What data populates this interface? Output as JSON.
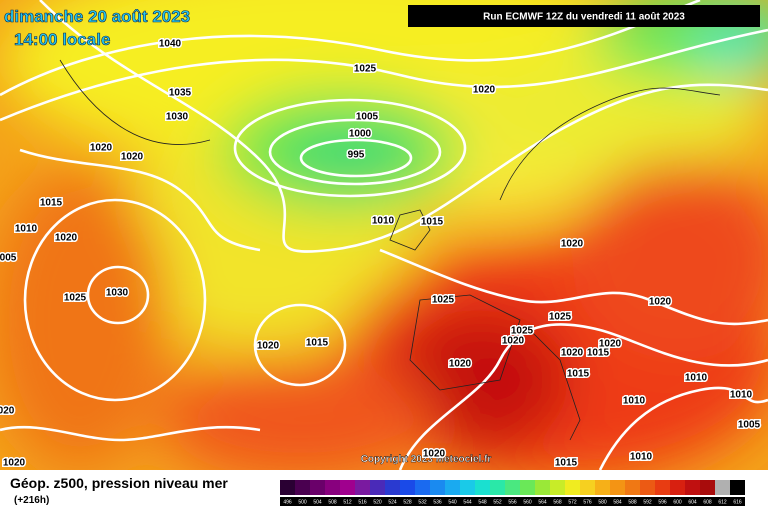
{
  "header": {
    "date": "dimanche 20 août 2023",
    "time": "14:00 locale",
    "run": "Run ECMWF 12Z du vendredi 11 août 2023"
  },
  "copyright": "Copyright 2023 Meteociel.fr",
  "footer": {
    "title": "Géop. z500, pression niveau mer",
    "lead": "(+216h)"
  },
  "colorbar": [
    "496",
    "500",
    "504",
    "508",
    "512",
    "516",
    "520",
    "524",
    "528",
    "532",
    "536",
    "540",
    "544",
    "548",
    "552",
    "556",
    "560",
    "564",
    "568",
    "572",
    "576",
    "580",
    "584",
    "588",
    "592",
    "596",
    "600",
    "604",
    "608",
    "612",
    "616"
  ],
  "isobars": [
    "1040",
    "1025",
    "1020",
    "1035",
    "1030",
    "1005",
    "1000",
    "995",
    "1020",
    "1020",
    "1015",
    "1010",
    "1020",
    "005",
    "1010",
    "1015",
    "1020",
    "1030",
    "1025",
    "1025",
    "1020",
    "1025",
    "1025",
    "1020",
    "1015",
    "1020",
    "1020",
    "1015",
    "1020",
    "1020",
    "1015",
    "1010",
    "1010",
    "1010",
    "020",
    "1005",
    "1020",
    "1015",
    "1010",
    "1020"
  ]
}
